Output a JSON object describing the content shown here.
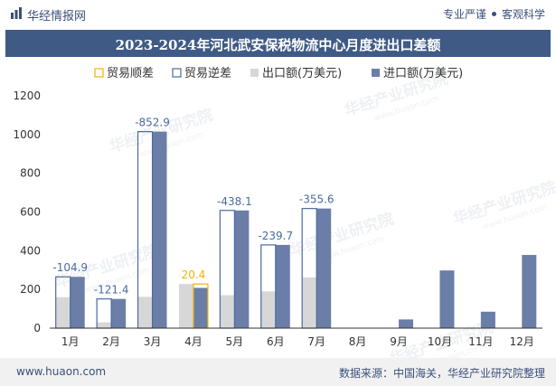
{
  "header": {
    "brand": "华经情报网",
    "tagline_left": "专业严谨",
    "tagline_right": "客观科学"
  },
  "chart_data": {
    "type": "bar",
    "title": "2023-2024年河北武安保税物流中心月度进出口差额",
    "categories": [
      "1月",
      "2月",
      "3月",
      "4月",
      "5月",
      "6月",
      "7月",
      "8月",
      "9月",
      "10月",
      "11月",
      "12月"
    ],
    "series": [
      {
        "name": "贸易顺差",
        "values": [
          null,
          null,
          null,
          20.4,
          null,
          null,
          null,
          null,
          null,
          null,
          null,
          null
        ]
      },
      {
        "name": "贸易逆差",
        "values": [
          -104.9,
          -121.4,
          -852.9,
          null,
          -438.1,
          -239.7,
          -355.6,
          null,
          null,
          null,
          null,
          null
        ]
      },
      {
        "name": "出口额(万美元)",
        "values": [
          160,
          30,
          162,
          228,
          170,
          190,
          262,
          0,
          0,
          0,
          0,
          0
        ]
      },
      {
        "name": "进口额(万美元)",
        "values": [
          265,
          151,
          1015,
          208,
          608,
          430,
          618,
          2,
          45,
          298,
          85,
          378
        ]
      }
    ],
    "data_labels": [
      "-104.9",
      "-121.4",
      "-852.9",
      "20.4",
      "-438.1",
      "-239.7",
      "-355.6"
    ],
    "yticks": [
      "0",
      "200",
      "400",
      "600",
      "800",
      "1000",
      "1200"
    ],
    "ylim": [
      0,
      1200
    ],
    "legend_position": "top",
    "colors": {
      "surplus": "#f0b400",
      "deficit": "#4a6aa0",
      "export": "#d7d7d7",
      "import": "#6b7ea8",
      "title_bg": "#3f5b85"
    }
  },
  "watermark": "华经产业研究院",
  "watermark_url": "www.huaon.com",
  "footer": {
    "site": "www.huaon.com",
    "source": "数据来源：中国海关，华经产业研究院整理"
  }
}
